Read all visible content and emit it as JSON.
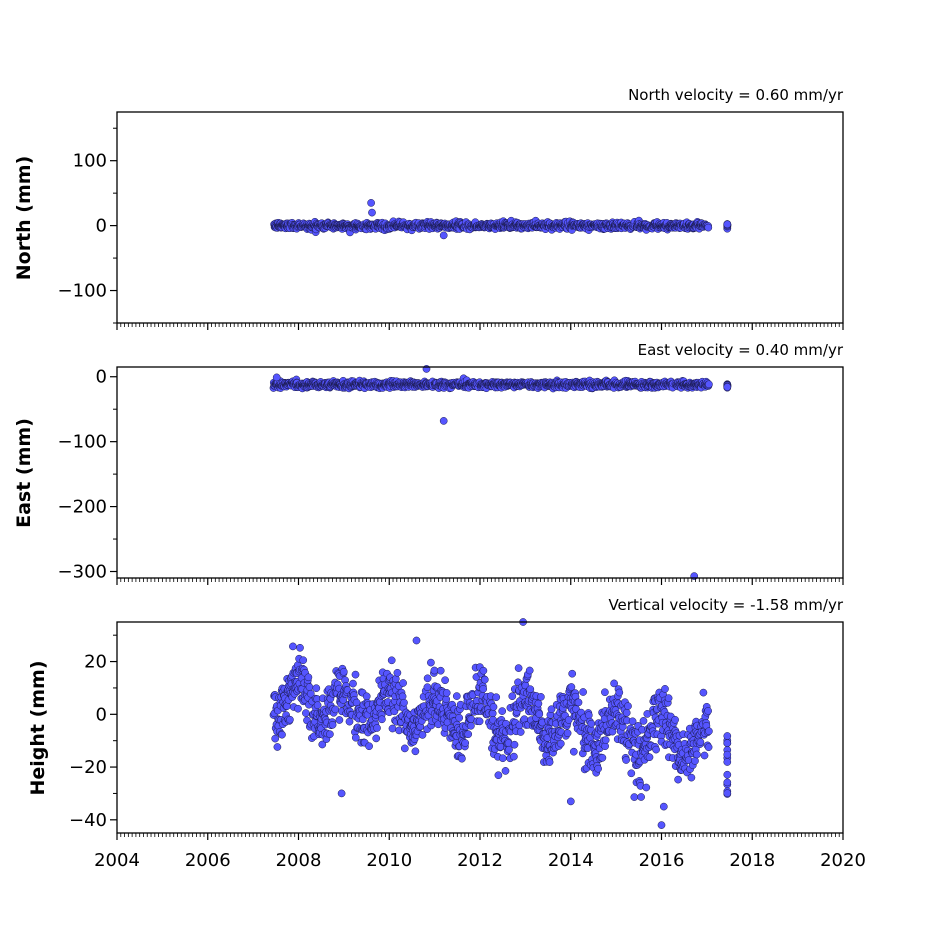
{
  "chart_data": [
    {
      "type": "scatter",
      "title": "North velocity = 0.60 mm/yr",
      "ylabel": "North (mm)",
      "ylim": [
        -150,
        175
      ],
      "yticks": [
        100,
        0,
        -100
      ],
      "ytick_labels": [
        "100",
        "0",
        "−100"
      ],
      "xlim": [
        2004,
        2020
      ],
      "baseline": 0,
      "noise": 2.5,
      "season_amp": 0,
      "outliers": [
        [
          2009.6,
          35
        ],
        [
          2009.62,
          20
        ],
        [
          2011.2,
          -15
        ]
      ],
      "marker_color": "#5555ff"
    },
    {
      "type": "scatter",
      "title": "East velocity = 0.40 mm/yr",
      "ylabel": "East (mm)",
      "ylim": [
        -310,
        15
      ],
      "yticks": [
        0,
        -100,
        -200,
        -300
      ],
      "ytick_labels": [
        "0",
        "−100",
        "−200",
        "−300"
      ],
      "xlim": [
        2004,
        2020
      ],
      "baseline": -12,
      "noise": 2.5,
      "season_amp": 0,
      "outliers": [
        [
          2007.52,
          -1
        ],
        [
          2010.82,
          12
        ],
        [
          2011.2,
          -68
        ],
        [
          2016.72,
          -307
        ]
      ],
      "marker_color": "#5555ff"
    },
    {
      "type": "scatter",
      "title": "Vertical velocity = -1.58 mm/yr",
      "ylabel": "Height (mm)",
      "ylim": [
        -45,
        35
      ],
      "yticks": [
        20,
        0,
        -20,
        -40
      ],
      "ytick_labels": [
        "20",
        "0",
        "−20",
        "−40"
      ],
      "xlim": [
        2004,
        2020
      ],
      "baseline": -1,
      "noise": 5.5,
      "season_amp": 7,
      "outliers": [
        [
          2012.95,
          35
        ],
        [
          2010.6,
          28
        ],
        [
          2016.0,
          -42
        ],
        [
          2008.95,
          -30
        ],
        [
          2016.05,
          -35
        ],
        [
          2014.0,
          -33
        ]
      ],
      "marker_color": "#5555ff"
    }
  ],
  "xaxis": {
    "ticks": [
      2004,
      2006,
      2008,
      2010,
      2012,
      2014,
      2016,
      2018,
      2020
    ],
    "tick_labels": [
      "2004",
      "2006",
      "2008",
      "2010",
      "2012",
      "2014",
      "2016",
      "2018",
      "2020"
    ]
  }
}
